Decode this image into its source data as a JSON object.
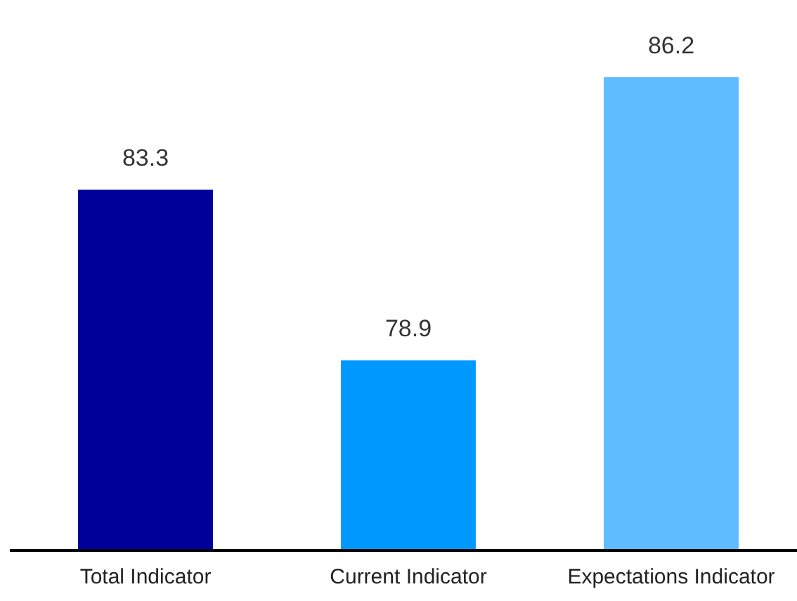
{
  "chart_data": {
    "type": "bar",
    "categories": [
      "Total Indicator",
      "Current Indicator",
      "Expectations Indicator"
    ],
    "values": [
      83.3,
      78.9,
      86.2
    ],
    "colors": [
      "#000099",
      "#0099ff",
      "#5ebcff"
    ],
    "ylim": [
      74,
      86.2
    ],
    "data_labels": true
  }
}
